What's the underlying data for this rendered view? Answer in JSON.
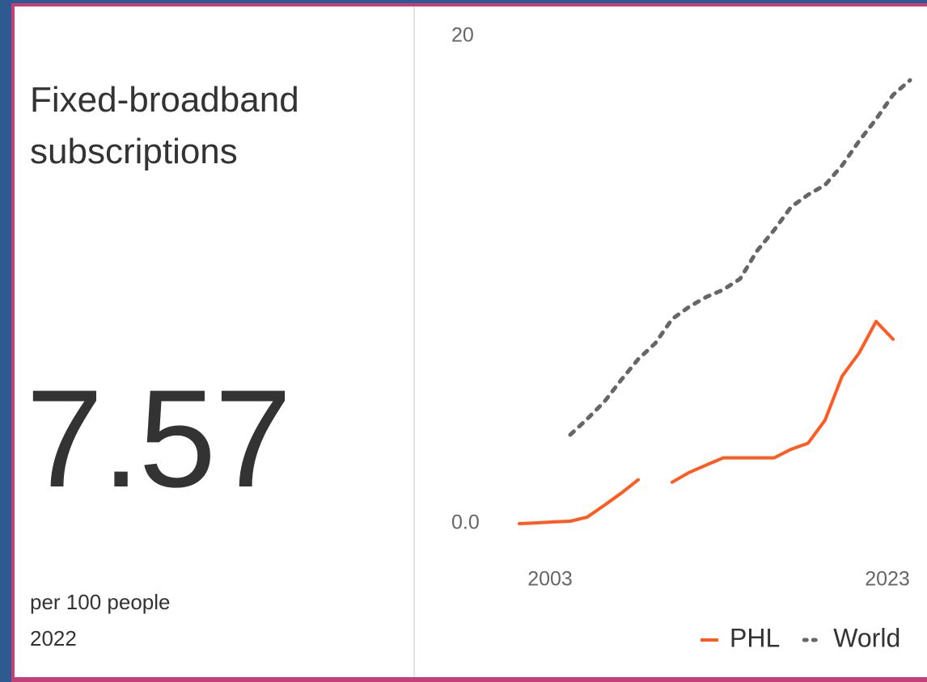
{
  "kpi": {
    "title": "Fixed-broadband subscriptions",
    "value": 7.57,
    "unit": "per 100 people",
    "year": "2022"
  },
  "chart_data": {
    "type": "line",
    "x": [
      2000,
      2001,
      2002,
      2003,
      2004,
      2005,
      2006,
      2007,
      2008,
      2009,
      2010,
      2011,
      2012,
      2013,
      2014,
      2015,
      2016,
      2017,
      2018,
      2019,
      2020,
      2021,
      2022,
      2023
    ],
    "series": [
      {
        "name": "PHL",
        "color": "#ff5a1f",
        "style": "solid",
        "values": [
          0.0,
          0.03,
          0.07,
          0.1,
          0.27,
          0.75,
          1.25,
          1.8,
          null,
          1.7,
          2.1,
          2.4,
          2.7,
          2.7,
          2.7,
          2.7,
          3.05,
          3.3,
          4.25,
          6.05,
          7.0,
          8.3,
          7.57,
          null
        ]
      },
      {
        "name": "World",
        "color": "#666666",
        "style": "dotted",
        "values": [
          null,
          null,
          null,
          3.65,
          4.3,
          5.0,
          5.9,
          6.75,
          7.4,
          8.4,
          8.9,
          9.3,
          9.6,
          10.05,
          11.2,
          12.05,
          13.0,
          13.5,
          13.9,
          14.7,
          15.7,
          16.6,
          17.6,
          18.2
        ]
      }
    ],
    "xlim": [
      2000,
      2023
    ],
    "xticks": [
      2003,
      2023
    ],
    "ylim": [
      0,
      20
    ],
    "yticks": [
      {
        "value": 0,
        "label": "0.0"
      },
      20
    ],
    "grid": false
  }
}
